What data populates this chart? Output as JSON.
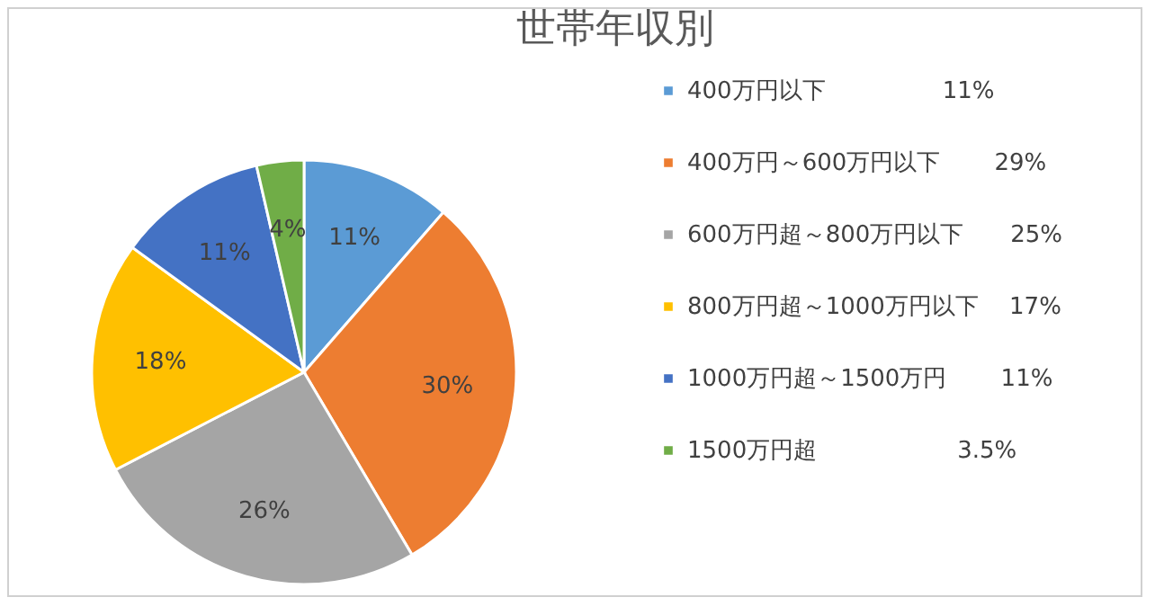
{
  "chart_data": {
    "type": "pie",
    "title": "世帯年収別",
    "categories": [
      "400万円以下　　　　　11%",
      "400万円～600万円以下　　 29%",
      "600万円超～800万円以下　　25%",
      "800万円超～1000万円以下　 17%",
      "1000万円超～1500万円　　 11%",
      "1500万円超　　　　　　3.5%"
    ],
    "values": [
      11.4,
      30.1,
      25.9,
      17.6,
      11.4,
      3.6
    ],
    "value_labels": [
      "11%",
      "30%",
      "26%",
      "18%",
      "11%",
      "4%"
    ],
    "colors": [
      "#5b9bd5",
      "#ed7d31",
      "#a5a5a5",
      "#ffc000",
      "#4472c4",
      "#70ad47"
    ],
    "legend": "right"
  }
}
